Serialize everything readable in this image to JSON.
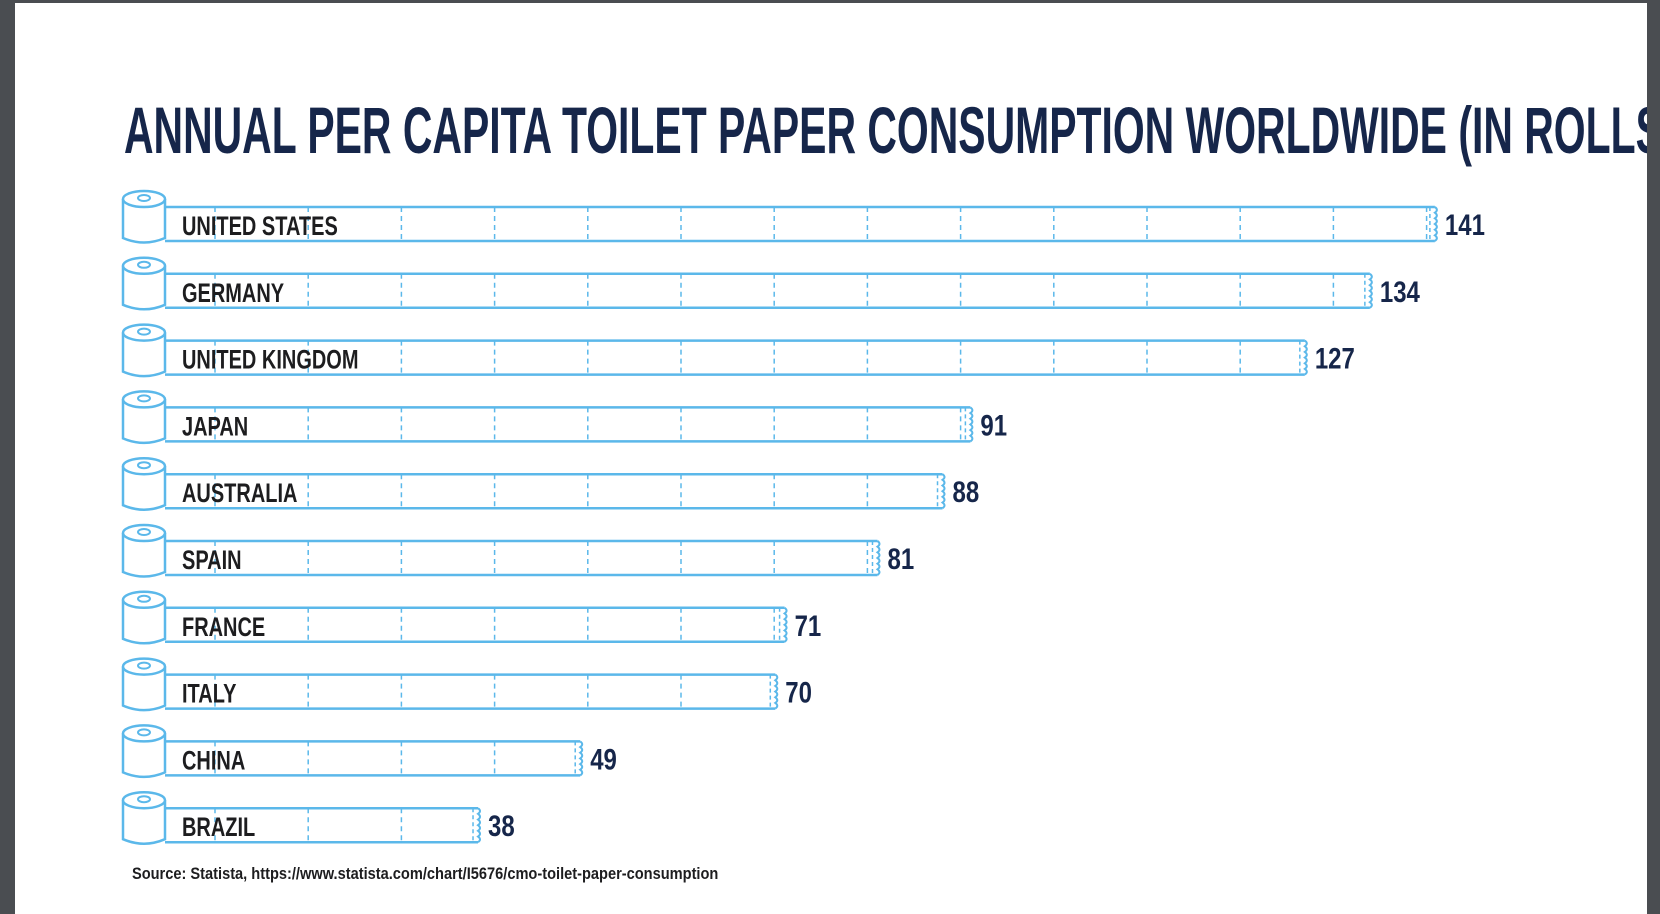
{
  "chart_data": {
    "type": "bar",
    "orientation": "horizontal",
    "title": "ANNUAL PER CAPITA TOILET PAPER CONSUMPTION WORLDWIDE (IN ROLLS)",
    "categories": [
      "UNITED STATES",
      "GERMANY",
      "UNITED KINGDOM",
      "JAPAN",
      "AUSTRALIA",
      "SPAIN",
      "FRANCE",
      "ITALY",
      "CHINA",
      "BRAZIL"
    ],
    "values": [
      141,
      134,
      127,
      91,
      88,
      81,
      71,
      70,
      49,
      38
    ],
    "xlabel": "",
    "ylabel": "",
    "grid": false,
    "source": "Source: Statista, https://www.statista.com/chart/I5676/cmo-toilet-paper-consumption"
  },
  "colors": {
    "bar": "#5bb8ea",
    "title": "#16264a",
    "label": "#1d1d1f"
  }
}
